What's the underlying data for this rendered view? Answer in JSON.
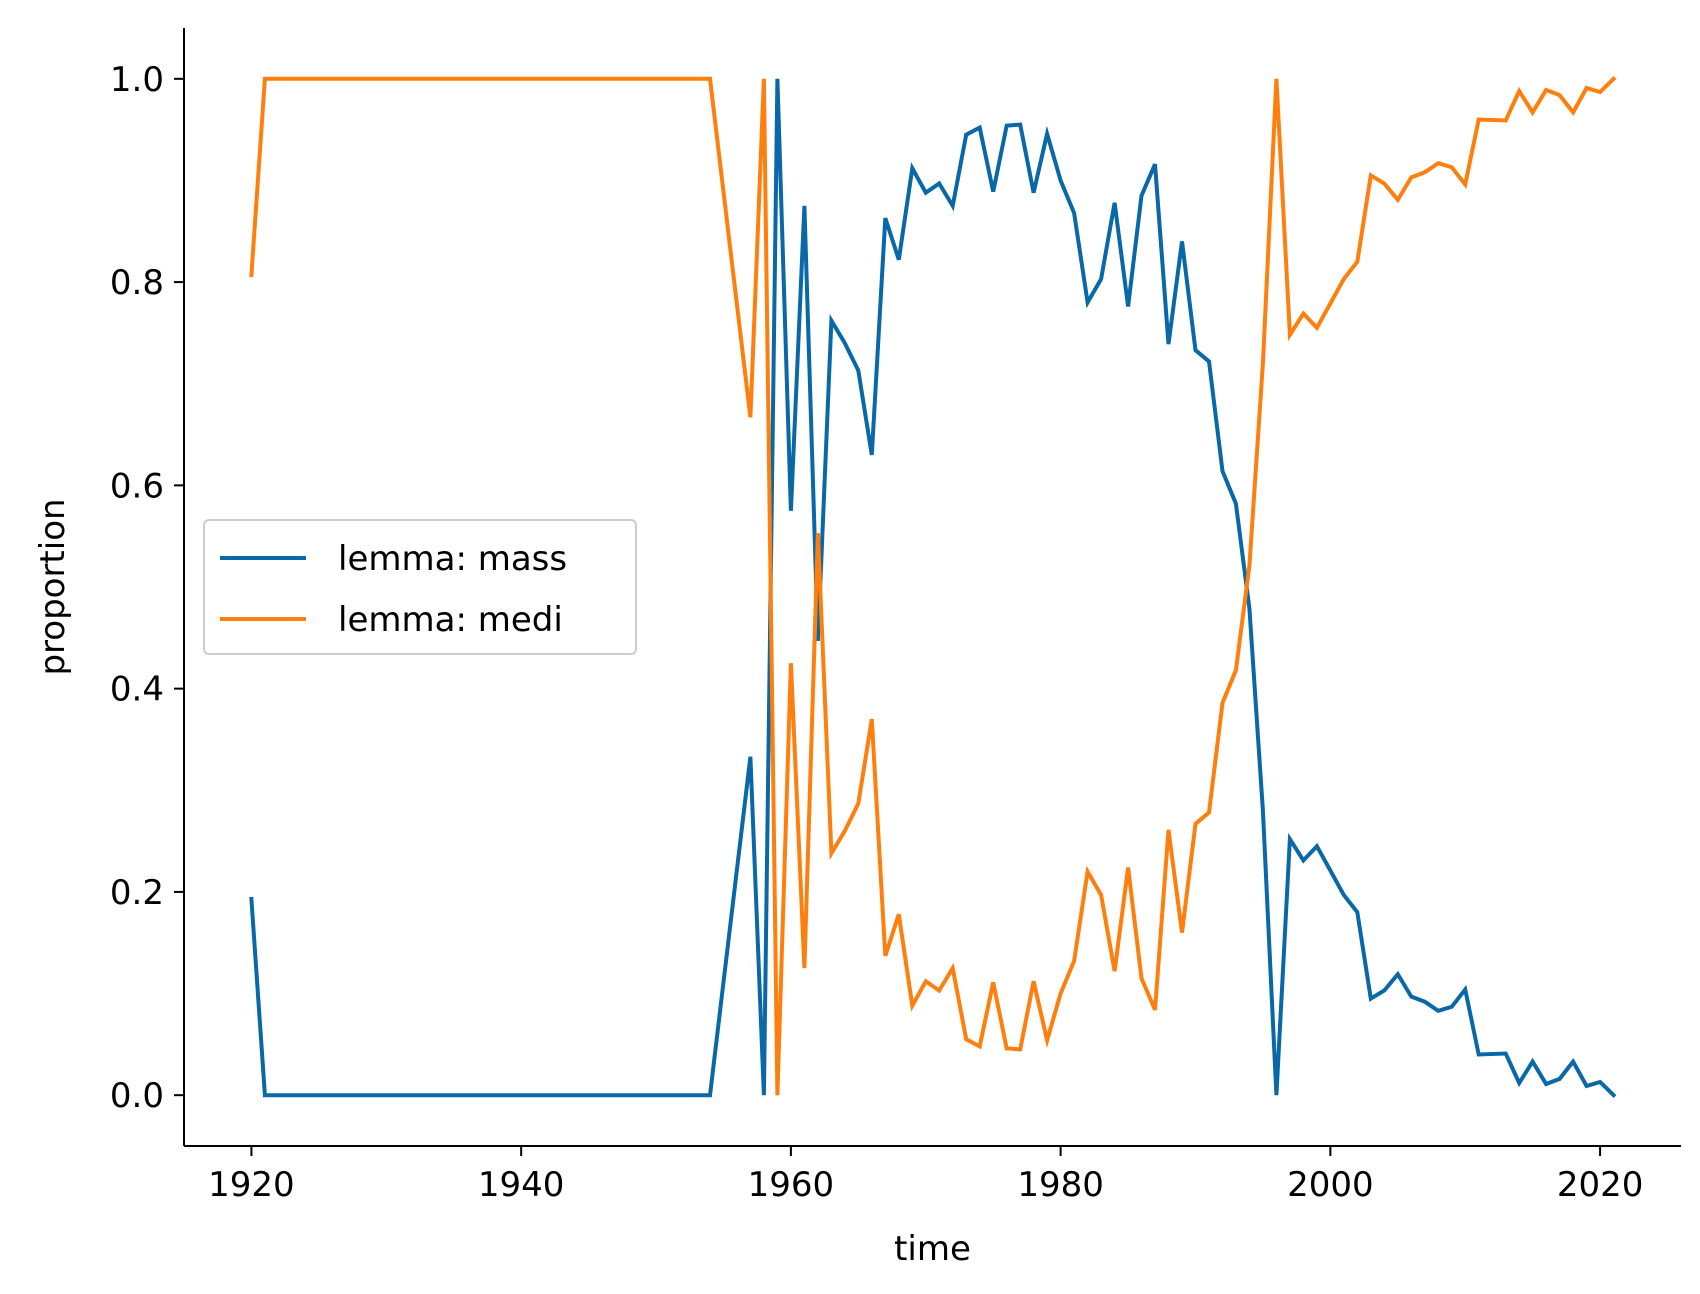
{
  "chart_data": {
    "type": "line",
    "title": "",
    "xlabel": "time",
    "ylabel": "proportion",
    "xlim": [
      1915,
      2026
    ],
    "ylim": [
      -0.05,
      1.05
    ],
    "xticks": [
      1920,
      1940,
      1960,
      1980,
      2000,
      2020
    ],
    "yticks": [
      0.0,
      0.2,
      0.4,
      0.6,
      0.8,
      1.0
    ],
    "grid": false,
    "legend_position": "center-left",
    "series": [
      {
        "name": "lemma: mass",
        "color": "#0868a8",
        "points": [
          [
            1920,
            0.193
          ],
          [
            1921,
            0.0
          ],
          [
            1954,
            0.0
          ],
          [
            1957,
            0.333
          ],
          [
            1958,
            0.0
          ],
          [
            1959,
            1.0
          ],
          [
            1960,
            0.575
          ],
          [
            1961,
            0.875
          ],
          [
            1962,
            0.447
          ],
          [
            1963,
            0.762
          ],
          [
            1964,
            0.74
          ],
          [
            1965,
            0.713
          ],
          [
            1966,
            0.63
          ],
          [
            1967,
            0.863
          ],
          [
            1968,
            0.822
          ],
          [
            1969,
            0.912
          ],
          [
            1970,
            0.888
          ],
          [
            1971,
            0.897
          ],
          [
            1972,
            0.875
          ],
          [
            1973,
            0.945
          ],
          [
            1974,
            0.952
          ],
          [
            1975,
            0.889
          ],
          [
            1976,
            0.954
          ],
          [
            1977,
            0.955
          ],
          [
            1978,
            0.888
          ],
          [
            1979,
            0.946
          ],
          [
            1980,
            0.9
          ],
          [
            1981,
            0.868
          ],
          [
            1982,
            0.78
          ],
          [
            1983,
            0.803
          ],
          [
            1984,
            0.878
          ],
          [
            1985,
            0.776
          ],
          [
            1986,
            0.885
          ],
          [
            1987,
            0.916
          ],
          [
            1988,
            0.739
          ],
          [
            1989,
            0.84
          ],
          [
            1990,
            0.733
          ],
          [
            1991,
            0.722
          ],
          [
            1992,
            0.614
          ],
          [
            1993,
            0.582
          ],
          [
            1994,
            0.479
          ],
          [
            1995,
            0.28
          ],
          [
            1996,
            0.0
          ],
          [
            1997,
            0.252
          ],
          [
            1998,
            0.231
          ],
          [
            1999,
            0.245
          ],
          [
            2000,
            0.221
          ],
          [
            2001,
            0.197
          ],
          [
            2002,
            0.18
          ],
          [
            2003,
            0.095
          ],
          [
            2004,
            0.103
          ],
          [
            2005,
            0.119
          ],
          [
            2006,
            0.097
          ],
          [
            2007,
            0.092
          ],
          [
            2008,
            0.083
          ],
          [
            2009,
            0.087
          ],
          [
            2010,
            0.104
          ],
          [
            2011,
            0.04
          ],
          [
            2013,
            0.041
          ],
          [
            2014,
            0.012
          ],
          [
            2015,
            0.033
          ],
          [
            2016,
            0.011
          ],
          [
            2017,
            0.016
          ],
          [
            2018,
            0.033
          ],
          [
            2019,
            0.009
          ],
          [
            2020,
            0.013
          ],
          [
            2021,
            0.0
          ]
        ]
      },
      {
        "name": "lemma: medi",
        "color": "#ff7f0e",
        "points": [
          [
            1920,
            0.807
          ],
          [
            1921,
            1.0
          ],
          [
            1954,
            1.0
          ],
          [
            1957,
            0.667
          ],
          [
            1958,
            1.0
          ],
          [
            1959,
            0.0
          ],
          [
            1960,
            0.425
          ],
          [
            1961,
            0.125
          ],
          [
            1962,
            0.553
          ],
          [
            1963,
            0.238
          ],
          [
            1964,
            0.26
          ],
          [
            1965,
            0.287
          ],
          [
            1966,
            0.37
          ],
          [
            1967,
            0.137
          ],
          [
            1968,
            0.178
          ],
          [
            1969,
            0.088
          ],
          [
            1970,
            0.112
          ],
          [
            1971,
            0.103
          ],
          [
            1972,
            0.125
          ],
          [
            1973,
            0.055
          ],
          [
            1974,
            0.048
          ],
          [
            1975,
            0.111
          ],
          [
            1976,
            0.046
          ],
          [
            1977,
            0.045
          ],
          [
            1978,
            0.112
          ],
          [
            1979,
            0.054
          ],
          [
            1980,
            0.1
          ],
          [
            1981,
            0.132
          ],
          [
            1982,
            0.22
          ],
          [
            1983,
            0.197
          ],
          [
            1984,
            0.122
          ],
          [
            1985,
            0.224
          ],
          [
            1986,
            0.115
          ],
          [
            1987,
            0.084
          ],
          [
            1988,
            0.261
          ],
          [
            1989,
            0.16
          ],
          [
            1990,
            0.267
          ],
          [
            1991,
            0.278
          ],
          [
            1992,
            0.386
          ],
          [
            1993,
            0.418
          ],
          [
            1994,
            0.521
          ],
          [
            1995,
            0.72
          ],
          [
            1996,
            1.0
          ],
          [
            1997,
            0.748
          ],
          [
            1998,
            0.769
          ],
          [
            1999,
            0.755
          ],
          [
            2000,
            0.779
          ],
          [
            2001,
            0.803
          ],
          [
            2002,
            0.82
          ],
          [
            2003,
            0.905
          ],
          [
            2004,
            0.897
          ],
          [
            2005,
            0.881
          ],
          [
            2006,
            0.903
          ],
          [
            2007,
            0.908
          ],
          [
            2008,
            0.917
          ],
          [
            2009,
            0.913
          ],
          [
            2010,
            0.896
          ],
          [
            2011,
            0.96
          ],
          [
            2013,
            0.959
          ],
          [
            2014,
            0.988
          ],
          [
            2015,
            0.967
          ],
          [
            2016,
            0.989
          ],
          [
            2017,
            0.984
          ],
          [
            2018,
            0.967
          ],
          [
            2019,
            0.991
          ],
          [
            2020,
            0.987
          ],
          [
            2021,
            1.0
          ]
        ]
      }
    ]
  }
}
